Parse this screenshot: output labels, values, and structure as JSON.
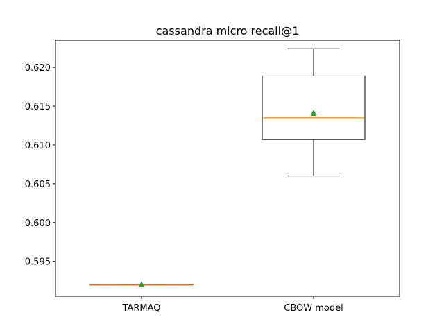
{
  "chart_data": {
    "type": "box",
    "title": "cassandra micro recall@1",
    "xlabel": "",
    "ylabel": "",
    "categories": [
      "TARMAQ",
      "CBOW model"
    ],
    "ylim": [
      0.5905,
      0.6235
    ],
    "yticks": [
      0.595,
      0.6,
      0.605,
      0.61,
      0.615,
      0.62
    ],
    "ytick_labels": [
      "0.595",
      "0.600",
      "0.605",
      "0.610",
      "0.615",
      "0.620"
    ],
    "boxes": [
      {
        "name": "TARMAQ",
        "whisker_low": 0.592,
        "q1": 0.592,
        "median": 0.592,
        "q3": 0.592,
        "whisker_high": 0.592,
        "mean": 0.592
      },
      {
        "name": "CBOW model",
        "whisker_low": 0.606,
        "q1": 0.6107,
        "median": 0.6135,
        "q3": 0.6189,
        "whisker_high": 0.6224,
        "mean": 0.6141
      }
    ],
    "grid": false,
    "colors": {
      "box": "#000000",
      "median": "#ff7f0e",
      "mean": "#2ca02c"
    }
  }
}
